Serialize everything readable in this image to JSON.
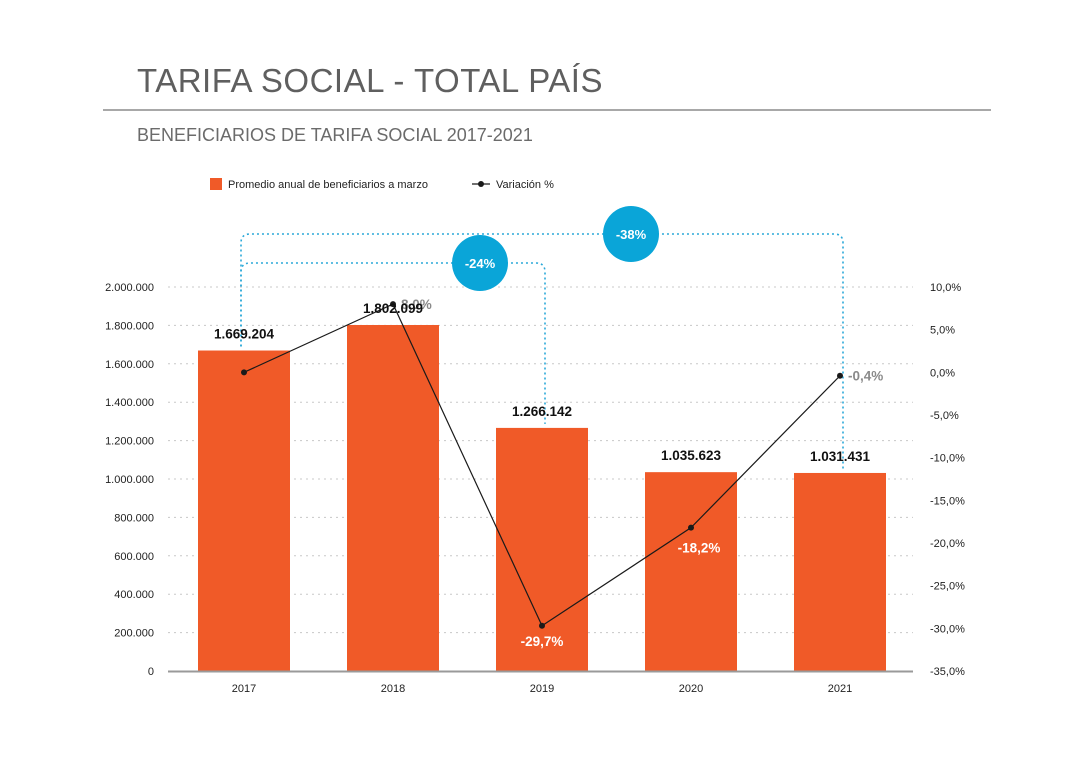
{
  "header": {
    "title": "TARIFA SOCIAL - TOTAL PAÍS",
    "subtitle": "BENEFICIARIOS DE TARIFA SOCIAL 2017-2021"
  },
  "colors": {
    "bar": "#f05a28",
    "line": "#1a1a1a",
    "badge": "#0aa5d8",
    "connector": "#2aa8d8",
    "grid": "#c8c8c8"
  },
  "chart_data": {
    "type": "bar",
    "categories": [
      "2017",
      "2018",
      "2019",
      "2020",
      "2021"
    ],
    "series": [
      {
        "name": "Promedio anual de beneficiarios a marzo",
        "axis": "left",
        "values": [
          1669204,
          1802099,
          1266142,
          1035623,
          1031431
        ],
        "labels": [
          "1.669.204",
          "1.802.099",
          "1.266.142",
          "1.035.623",
          "1.031.431"
        ]
      },
      {
        "name": "Variación %",
        "type": "line",
        "axis": "right",
        "values": [
          0,
          8.0,
          -29.7,
          -18.2,
          -0.4
        ],
        "labels": [
          "",
          "8,0%",
          "-29,7%",
          "-18,2%",
          "-0,4%"
        ]
      }
    ],
    "y_left": {
      "min": 0,
      "max": 2000000,
      "ticks": [
        0,
        200000,
        400000,
        600000,
        800000,
        1000000,
        1200000,
        1400000,
        1600000,
        1800000,
        2000000
      ],
      "tick_labels": [
        "0",
        "200.000",
        "400.000",
        "600.000",
        "800.000",
        "1.000.000",
        "1.200.000",
        "1.400.000",
        "1.600.000",
        "1.800.000",
        "2.000.000"
      ]
    },
    "y_right": {
      "min": -35,
      "max": 10,
      "ticks": [
        10,
        5,
        0,
        -5,
        -10,
        -15,
        -20,
        -25,
        -30,
        -35
      ],
      "tick_labels": [
        "10,0%",
        "5,0%",
        "0,0%",
        "-5,0%",
        "-10,0%",
        "-15,0%",
        "-20,0%",
        "-25,0%",
        "-30,0%",
        "-35,0%"
      ]
    },
    "grid": true,
    "legend": "top",
    "annotations": [
      {
        "label": "-24%",
        "from": "2017",
        "to": "2019"
      },
      {
        "label": "-38%",
        "from": "2017",
        "to": "2021"
      }
    ]
  }
}
